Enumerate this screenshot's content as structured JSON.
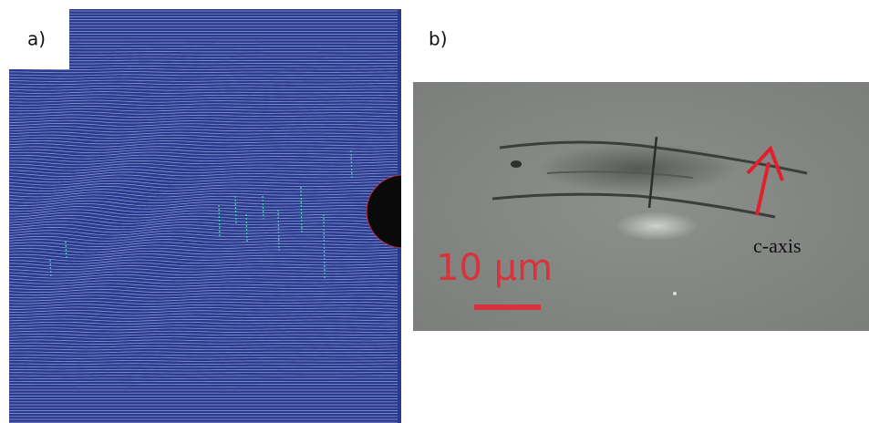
{
  "panels": [
    {
      "label": "a)"
    },
    {
      "label": "b)",
      "scale_bar_label": "10 μm",
      "arrow_label": "c-axis"
    }
  ]
}
